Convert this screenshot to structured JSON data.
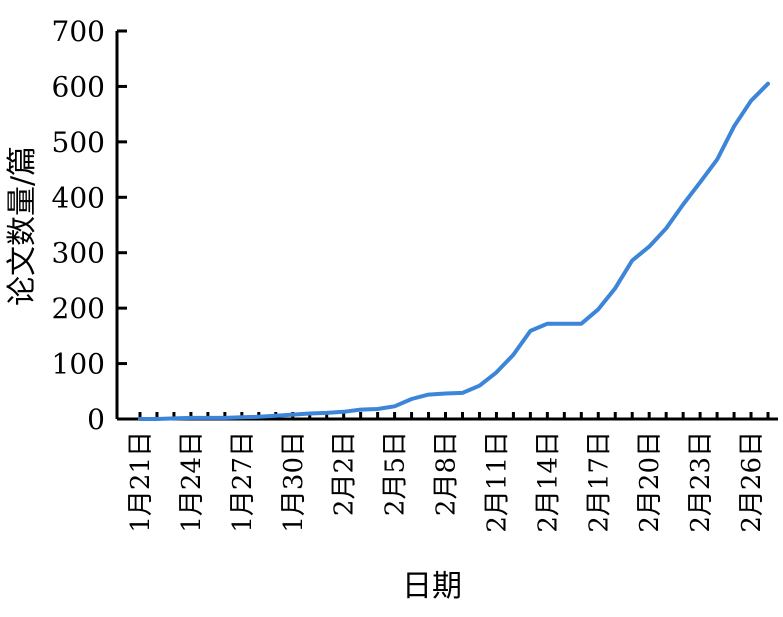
{
  "chart_data": {
    "type": "line",
    "title": "",
    "xlabel": "日期",
    "ylabel": "论文数量/篇",
    "ylim": [
      0,
      700
    ],
    "yticks": [
      0,
      100,
      200,
      300,
      400,
      500,
      600,
      700
    ],
    "grid": false,
    "line_color": "#3d85d8",
    "x_tick_labels": [
      "1月21日",
      "1月24日",
      "1月27日",
      "1月30日",
      "2月2日",
      "2月5日",
      "2月8日",
      "2月11日",
      "2月14日",
      "2月17日",
      "2月20日",
      "2月23日",
      "2月26日"
    ],
    "x": [
      "1月21日",
      "1月22日",
      "1月23日",
      "1月24日",
      "1月25日",
      "1月26日",
      "1月27日",
      "1月28日",
      "1月29日",
      "1月30日",
      "1月31日",
      "2月1日",
      "2月2日",
      "2月3日",
      "2月4日",
      "2月5日",
      "2月6日",
      "2月7日",
      "2月8日",
      "2月9日",
      "2月10日",
      "2月11日",
      "2月12日",
      "2月13日",
      "2月14日",
      "2月15日",
      "2月16日",
      "2月17日",
      "2月18日",
      "2月19日",
      "2月20日",
      "2月21日",
      "2月22日",
      "2月23日",
      "2月24日",
      "2月25日",
      "2月26日",
      "2月27日"
    ],
    "series": [
      {
        "values": [
          0,
          0,
          1,
          2,
          2,
          2,
          3,
          4,
          6,
          8,
          10,
          11,
          13,
          17,
          18,
          23,
          36,
          44,
          46,
          47,
          60,
          84,
          116,
          159,
          172,
          172,
          172,
          198,
          236,
          286,
          311,
          344,
          387,
          427,
          468,
          528,
          574,
          605
        ]
      }
    ]
  }
}
